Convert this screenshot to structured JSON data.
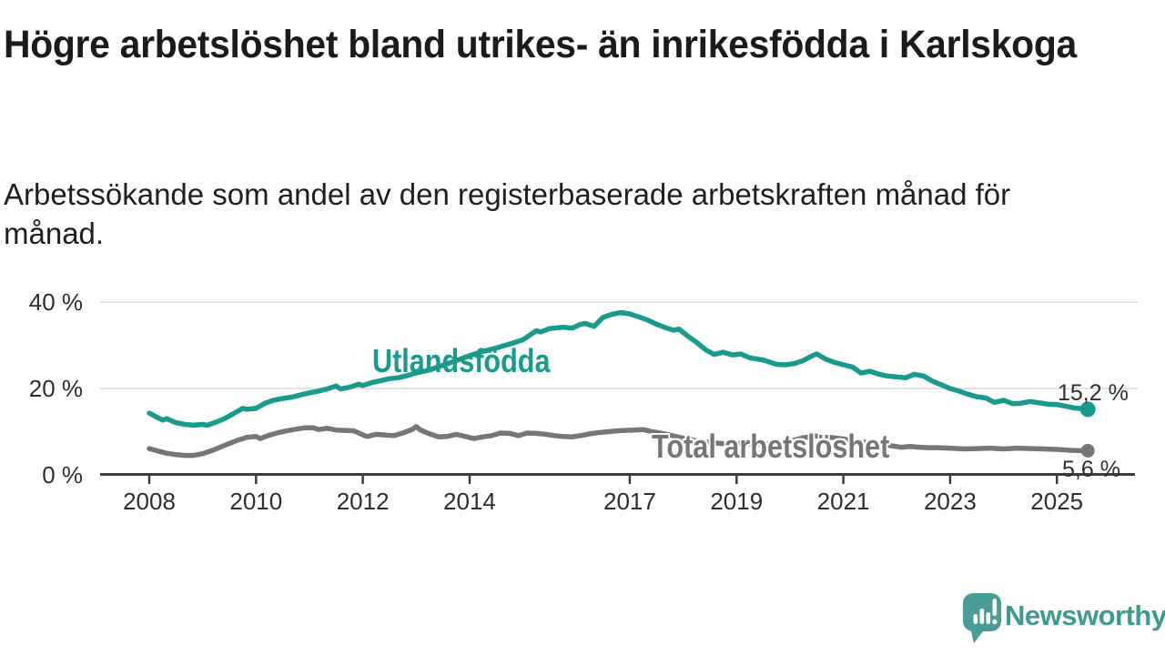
{
  "header": {
    "title": "Högre arbetslöshet bland utrikes- än inrikesfödda i Karlskoga",
    "subtitle_lines": [
      "Arbetssökande som andel av den registerbaserade arbetskraften månad för",
      "månad."
    ]
  },
  "chart_data": {
    "type": "line",
    "title": "Högre arbetslöshet bland utrikes- än inrikesfödda i Karlskoga",
    "xlabel": "",
    "ylabel": "",
    "grid": "horizontal-only",
    "x_axis": {
      "range": [
        2007.9,
        2025.9
      ],
      "ticks": [
        {
          "v": 2008,
          "label": "2008"
        },
        {
          "v": 2010,
          "label": "2010"
        },
        {
          "v": 2012,
          "label": "2012"
        },
        {
          "v": 2014,
          "label": "2014"
        },
        {
          "v": 2017,
          "label": "2017"
        },
        {
          "v": 2019,
          "label": "2019"
        },
        {
          "v": 2021,
          "label": "2021"
        },
        {
          "v": 2023,
          "label": "2023"
        },
        {
          "v": 2025,
          "label": "2025"
        }
      ]
    },
    "y_axis": {
      "range": [
        0,
        40
      ],
      "unit": "%",
      "ticks": [
        {
          "v": 0,
          "label": "0 %"
        },
        {
          "v": 20,
          "label": "20 %"
        },
        {
          "v": 40,
          "label": "40 %"
        }
      ]
    },
    "series": [
      {
        "name": "Total arbetslöshet",
        "color": "#76757a",
        "stroke_width": 5.5,
        "dot_radius": 7.5,
        "end_label": "5,6 %",
        "end_value": 5.6,
        "points": [
          [
            2008.0,
            6.1
          ],
          [
            2008.17,
            5.5
          ],
          [
            2008.33,
            5.0
          ],
          [
            2008.5,
            4.7
          ],
          [
            2008.67,
            4.5
          ],
          [
            2008.83,
            4.5
          ],
          [
            2009.0,
            4.9
          ],
          [
            2009.17,
            5.6
          ],
          [
            2009.33,
            6.4
          ],
          [
            2009.5,
            7.3
          ],
          [
            2009.67,
            8.1
          ],
          [
            2009.83,
            8.7
          ],
          [
            2010.0,
            8.9
          ],
          [
            2010.08,
            8.4
          ],
          [
            2010.25,
            9.2
          ],
          [
            2010.42,
            9.8
          ],
          [
            2010.58,
            10.2
          ],
          [
            2010.75,
            10.6
          ],
          [
            2010.92,
            10.9
          ],
          [
            2011.08,
            10.9
          ],
          [
            2011.17,
            10.5
          ],
          [
            2011.33,
            10.8
          ],
          [
            2011.5,
            10.4
          ],
          [
            2011.67,
            10.3
          ],
          [
            2011.83,
            10.2
          ],
          [
            2012.0,
            9.3
          ],
          [
            2012.08,
            8.9
          ],
          [
            2012.25,
            9.4
          ],
          [
            2012.42,
            9.2
          ],
          [
            2012.58,
            9.1
          ],
          [
            2012.75,
            9.7
          ],
          [
            2012.92,
            10.5
          ],
          [
            2013.0,
            11.2
          ],
          [
            2013.08,
            10.4
          ],
          [
            2013.25,
            9.5
          ],
          [
            2013.42,
            8.8
          ],
          [
            2013.58,
            8.9
          ],
          [
            2013.75,
            9.4
          ],
          [
            2013.92,
            8.9
          ],
          [
            2014.08,
            8.4
          ],
          [
            2014.25,
            8.8
          ],
          [
            2014.42,
            9.1
          ],
          [
            2014.58,
            9.7
          ],
          [
            2014.75,
            9.6
          ],
          [
            2014.92,
            9.1
          ],
          [
            2015.08,
            9.7
          ],
          [
            2015.25,
            9.6
          ],
          [
            2015.42,
            9.4
          ],
          [
            2015.58,
            9.1
          ],
          [
            2015.75,
            8.9
          ],
          [
            2015.92,
            8.8
          ],
          [
            2016.08,
            9.1
          ],
          [
            2016.25,
            9.5
          ],
          [
            2016.42,
            9.8
          ],
          [
            2016.58,
            10.0
          ],
          [
            2016.75,
            10.2
          ],
          [
            2016.92,
            10.3
          ],
          [
            2017.08,
            10.4
          ],
          [
            2017.25,
            10.5
          ],
          [
            2017.42,
            10.0
          ],
          [
            2017.58,
            9.7
          ],
          [
            2017.75,
            9.2
          ],
          [
            2018.0,
            8.5
          ],
          [
            2018.25,
            7.9
          ],
          [
            2018.5,
            7.5
          ],
          [
            2018.75,
            7.2
          ],
          [
            2019.0,
            7.3
          ],
          [
            2019.25,
            7.2
          ],
          [
            2019.5,
            7.1
          ],
          [
            2019.75,
            7.3
          ],
          [
            2020.0,
            7.8
          ],
          [
            2020.25,
            8.6
          ],
          [
            2020.5,
            9.0
          ],
          [
            2020.75,
            8.7
          ],
          [
            2021.0,
            8.3
          ],
          [
            2021.25,
            7.8
          ],
          [
            2021.5,
            7.4
          ],
          [
            2021.75,
            7.0
          ],
          [
            2021.92,
            6.7
          ],
          [
            2022.08,
            6.4
          ],
          [
            2022.25,
            6.6
          ],
          [
            2022.42,
            6.4
          ],
          [
            2022.58,
            6.3
          ],
          [
            2022.75,
            6.3
          ],
          [
            2023.0,
            6.2
          ],
          [
            2023.25,
            6.0
          ],
          [
            2023.5,
            6.1
          ],
          [
            2023.75,
            6.2
          ],
          [
            2024.0,
            6.0
          ],
          [
            2024.25,
            6.2
          ],
          [
            2024.5,
            6.1
          ],
          [
            2024.75,
            6.0
          ],
          [
            2025.0,
            5.9
          ],
          [
            2025.25,
            5.7
          ],
          [
            2025.42,
            5.6
          ],
          [
            2025.58,
            5.6
          ]
        ]
      },
      {
        "name": "Utlandsfödda",
        "color": "#179b8d",
        "stroke_width": 5.5,
        "dot_radius": 8.5,
        "end_label": "15,2 %",
        "end_value": 15.2,
        "points": [
          [
            2008.0,
            14.3
          ],
          [
            2008.17,
            13.2
          ],
          [
            2008.25,
            12.7
          ],
          [
            2008.33,
            13.0
          ],
          [
            2008.5,
            12.1
          ],
          [
            2008.67,
            11.7
          ],
          [
            2008.83,
            11.5
          ],
          [
            2009.0,
            11.7
          ],
          [
            2009.08,
            11.5
          ],
          [
            2009.25,
            12.2
          ],
          [
            2009.42,
            13.1
          ],
          [
            2009.58,
            14.2
          ],
          [
            2009.75,
            15.4
          ],
          [
            2009.83,
            15.2
          ],
          [
            2010.0,
            15.4
          ],
          [
            2010.17,
            16.6
          ],
          [
            2010.33,
            17.3
          ],
          [
            2010.5,
            17.7
          ],
          [
            2010.67,
            18.0
          ],
          [
            2010.83,
            18.5
          ],
          [
            2011.0,
            19.0
          ],
          [
            2011.17,
            19.4
          ],
          [
            2011.33,
            19.9
          ],
          [
            2011.5,
            20.6
          ],
          [
            2011.58,
            19.9
          ],
          [
            2011.75,
            20.3
          ],
          [
            2011.92,
            21.0
          ],
          [
            2012.0,
            20.7
          ],
          [
            2012.17,
            21.4
          ],
          [
            2012.33,
            21.8
          ],
          [
            2012.5,
            22.3
          ],
          [
            2012.67,
            22.5
          ],
          [
            2012.83,
            23.0
          ],
          [
            2013.0,
            23.6
          ],
          [
            2013.25,
            24.3
          ],
          [
            2013.5,
            25.4
          ],
          [
            2013.75,
            26.5
          ],
          [
            2014.0,
            27.6
          ],
          [
            2014.25,
            28.6
          ],
          [
            2014.5,
            29.4
          ],
          [
            2014.75,
            30.3
          ],
          [
            2015.0,
            31.3
          ],
          [
            2015.25,
            33.4
          ],
          [
            2015.33,
            33.1
          ],
          [
            2015.5,
            33.9
          ],
          [
            2015.75,
            34.2
          ],
          [
            2015.92,
            34.0
          ],
          [
            2016.08,
            34.9
          ],
          [
            2016.17,
            35.1
          ],
          [
            2016.33,
            34.4
          ],
          [
            2016.5,
            36.5
          ],
          [
            2016.67,
            37.2
          ],
          [
            2016.83,
            37.6
          ],
          [
            2017.0,
            37.3
          ],
          [
            2017.17,
            36.6
          ],
          [
            2017.33,
            35.9
          ],
          [
            2017.5,
            34.9
          ],
          [
            2017.67,
            34.1
          ],
          [
            2017.83,
            33.5
          ],
          [
            2017.92,
            33.8
          ],
          [
            2018.08,
            32.2
          ],
          [
            2018.25,
            30.7
          ],
          [
            2018.42,
            29.0
          ],
          [
            2018.58,
            27.9
          ],
          [
            2018.75,
            28.4
          ],
          [
            2018.92,
            27.8
          ],
          [
            2019.08,
            28.0
          ],
          [
            2019.25,
            27.1
          ],
          [
            2019.5,
            26.6
          ],
          [
            2019.75,
            25.6
          ],
          [
            2019.92,
            25.5
          ],
          [
            2020.08,
            25.8
          ],
          [
            2020.25,
            26.5
          ],
          [
            2020.42,
            27.6
          ],
          [
            2020.5,
            28.0
          ],
          [
            2020.67,
            26.8
          ],
          [
            2020.83,
            26.1
          ],
          [
            2021.0,
            25.5
          ],
          [
            2021.17,
            25.0
          ],
          [
            2021.33,
            23.6
          ],
          [
            2021.5,
            24.0
          ],
          [
            2021.67,
            23.3
          ],
          [
            2021.83,
            22.9
          ],
          [
            2022.0,
            22.7
          ],
          [
            2022.17,
            22.5
          ],
          [
            2022.33,
            23.3
          ],
          [
            2022.5,
            22.9
          ],
          [
            2022.67,
            21.7
          ],
          [
            2022.83,
            20.9
          ],
          [
            2023.0,
            20.0
          ],
          [
            2023.17,
            19.4
          ],
          [
            2023.33,
            18.7
          ],
          [
            2023.5,
            18.1
          ],
          [
            2023.67,
            17.8
          ],
          [
            2023.83,
            16.8
          ],
          [
            2024.0,
            17.3
          ],
          [
            2024.17,
            16.5
          ],
          [
            2024.33,
            16.6
          ],
          [
            2024.5,
            17.0
          ],
          [
            2024.67,
            16.7
          ],
          [
            2024.83,
            16.4
          ],
          [
            2025.0,
            16.3
          ],
          [
            2025.17,
            15.9
          ],
          [
            2025.33,
            15.5
          ],
          [
            2025.5,
            15.3
          ],
          [
            2025.58,
            15.2
          ]
        ]
      }
    ],
    "colors": {
      "gridline": "#d9d9d9",
      "axis": "#3d3d3d",
      "tick_text": "#2e2e2e"
    }
  },
  "annotations": {
    "utlandsfodda_label": "Utlandsfödda",
    "total_label": "Total arbetslöshet",
    "utlandsfodda_end_value": "15,2 %",
    "total_end_value": "5,6 %"
  },
  "footer": {
    "brand": "Newsworthy",
    "brand_color": "#3d9a92",
    "logo_fill": "#4a9d96"
  }
}
